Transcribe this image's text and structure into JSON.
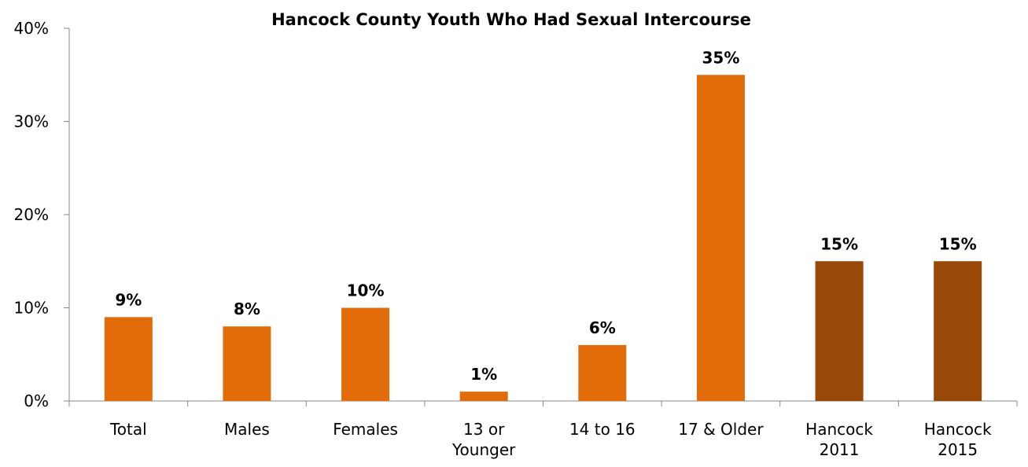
{
  "chart_data": {
    "type": "bar",
    "title": "Hancock County Youth Who Had Sexual Intercourse",
    "xlabel": "",
    "ylabel": "",
    "ylim": [
      0,
      40
    ],
    "yticks": [
      "0%",
      "10%",
      "20%",
      "30%",
      "40%"
    ],
    "ytick_values": [
      0,
      10,
      20,
      30,
      40
    ],
    "categories": [
      [
        "Total"
      ],
      [
        "Males"
      ],
      [
        "Females"
      ],
      [
        "13 or",
        "Younger"
      ],
      [
        "14 to 16"
      ],
      [
        "17 & Older"
      ],
      [
        "Hancock",
        "2011"
      ],
      [
        "Hancock",
        "2015"
      ]
    ],
    "values": [
      9,
      8,
      10,
      1,
      6,
      35,
      15,
      15
    ],
    "data_labels": [
      "9%",
      "8%",
      "10%",
      "1%",
      "6%",
      "35%",
      "15%",
      "15%"
    ],
    "bar_colors": [
      "#E36C0A",
      "#E36C0A",
      "#E36C0A",
      "#E36C0A",
      "#E36C0A",
      "#E36C0A",
      "#984807",
      "#984807"
    ],
    "grid": false,
    "legend": "none"
  }
}
